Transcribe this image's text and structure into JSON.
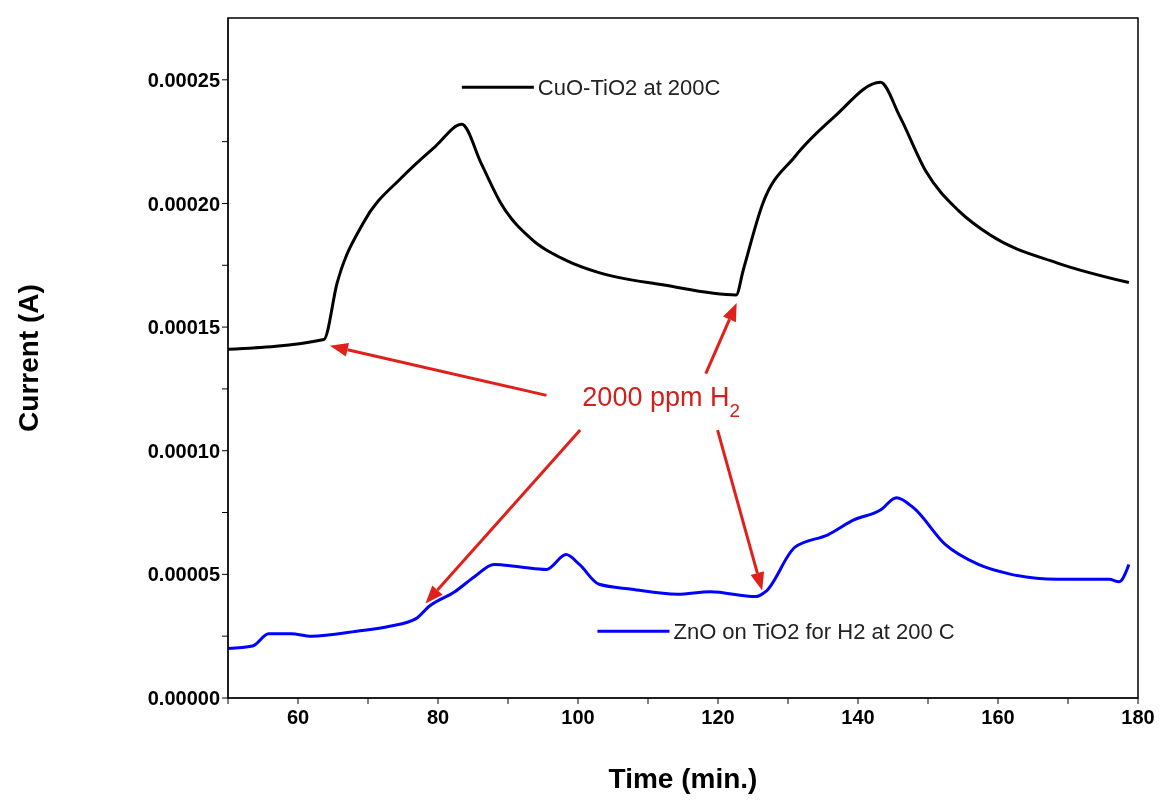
{
  "chart_data": {
    "type": "line",
    "xlabel": "Time (min.)",
    "ylabel": "Current (A)",
    "annotations": [
      "2000 ppm H$_{2}$"
    ],
    "marker": "none",
    "legend": "center",
    "xlim": [
      50,
      180
    ],
    "xticks": [
      {
        "value": 50,
        "label": null
      },
      60,
      {
        "value": 70,
        "label": null
      },
      80,
      {
        "value": 90,
        "label": null
      },
      100,
      {
        "value": 110,
        "label": null
      },
      120,
      {
        "value": 130,
        "label": null
      },
      140,
      {
        "value": 150,
        "label": null
      },
      160,
      {
        "value": 170,
        "label": null
      },
      180
    ],
    "ylim": [
      0,
      0.000275
    ],
    "yticks": [
      {
        "value": 0,
        "label": "0.00000"
      },
      {
        "value": 2.5e-05,
        "label": null
      },
      {
        "value": 5e-05,
        "label": "0.00005"
      },
      {
        "value": 7.5e-05,
        "label": null
      },
      {
        "value": 0.0001,
        "label": "0.00010"
      },
      {
        "value": 0.000125,
        "label": null
      },
      {
        "value": 0.00015,
        "label": "0.00015"
      },
      {
        "value": 0.000175,
        "label": null
      },
      {
        "value": 0.0002,
        "label": "0.00020"
      },
      {
        "value": 0.000225,
        "label": null
      },
      {
        "value": 0.00025,
        "label": "0.00025"
      }
    ],
    "series": [
      {
        "name": "CuO-TiO2 at 200C",
        "color": "#000000",
        "x": [
          50,
          63.7,
          65.6,
          69.3,
          75,
          79.6,
          83.4,
          86.2,
          89,
          93.6,
          98.3,
          103,
          112.3,
          122.6,
          123.6,
          126.4,
          131,
          136.6,
          143.2,
          146,
          149.7,
          154.4,
          159,
          168.4,
          178.7
        ],
        "values": [
          0.000141,
          0.000145,
          0.000168,
          0.000192,
          0.000211,
          0.000223,
          0.000232,
          0.000216,
          0.0002,
          0.000185,
          0.000177,
          0.000172,
          0.000167,
          0.000163,
          0.000173,
          0.0002,
          0.000219,
          0.000235,
          0.000249,
          0.000235,
          0.000213,
          0.000197,
          0.000187,
          0.000176,
          0.000168
        ]
      },
      {
        "name": "ZnO on TiO2 for H2 at 200 C",
        "color": "#0000ff",
        "x": [
          50,
          53.5,
          55.8,
          59,
          61.9,
          68.4,
          73.1,
          76.8,
          78.7,
          82.4,
          85.2,
          88,
          91.8,
          95.5,
          98.3,
          100.2,
          103,
          107.7,
          114.2,
          118.9,
          125.4,
          126.8,
          131,
          135.7,
          139.4,
          143.2,
          145.5,
          147.9,
          152.5,
          157.2,
          161.9,
          168.4,
          175.9,
          177.3,
          178.7
        ],
        "values": [
          2e-05,
          2.1e-05,
          2.6e-05,
          2.6e-05,
          2.5e-05,
          2.7e-05,
          2.9e-05,
          3.2e-05,
          3.7e-05,
          4.3e-05,
          4.9e-05,
          5.4e-05,
          5.3e-05,
          5.2e-05,
          5.8e-05,
          5.4e-05,
          4.6e-05,
          4.4e-05,
          4.2e-05,
          4.3e-05,
          4.1e-05,
          4.3e-05,
          6.1e-05,
          6.6e-05,
          7.2e-05,
          7.6e-05,
          8.1e-05,
          7.7e-05,
          6.2e-05,
          5.4e-05,
          5e-05,
          4.8e-05,
          4.8e-05,
          4.7e-05,
          5.4e-05
        ]
      }
    ]
  }
}
